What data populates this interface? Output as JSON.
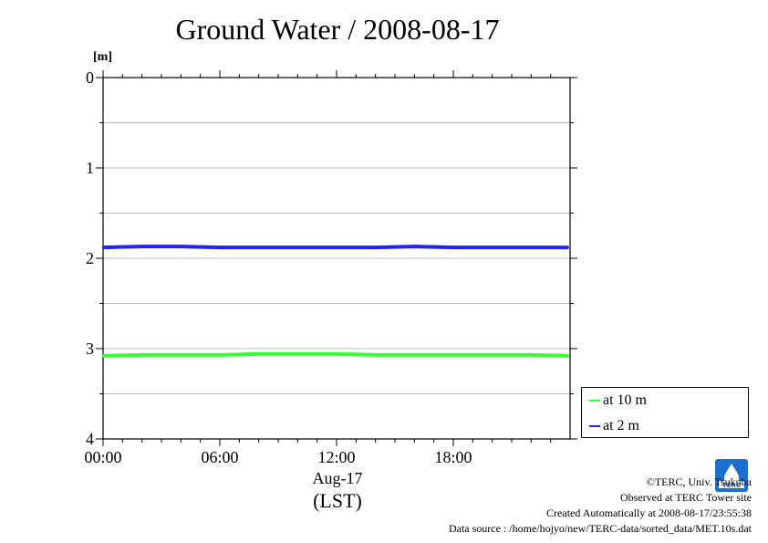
{
  "title": "Ground Water / 2008-08-17",
  "unit_label": "[m]",
  "date_label": "Aug-17",
  "tz_label": "(LST)",
  "legend": [
    {
      "label": "at 10 m",
      "color": "#33ff33"
    },
    {
      "label": "at 2 m",
      "color": "#2222ff"
    }
  ],
  "footer": {
    "copyright": "©TERC, Univ. Tsukuba",
    "observed": "Observed at TERC Tower site",
    "created": "Created Automatically at 2008-08-17/23:55:38",
    "source": "Data source : /home/hojyo/new/TERC-data/sorted_data/MET.10s.dat"
  },
  "logo_text": "TERC",
  "chart_data": {
    "type": "line",
    "title": "Ground Water / 2008-08-17",
    "ylabel": "[m]",
    "xlabel": "Aug-17 (LST)",
    "x_range_hours": [
      0,
      24
    ],
    "ylim": [
      0,
      4
    ],
    "y_inverted": true,
    "y_ticks": [
      "0",
      "1",
      "2",
      "3",
      "4"
    ],
    "x_tick_labels": [
      "00:00",
      "06:00",
      "12:00",
      "18:00"
    ],
    "x_ticks_hours": [
      0,
      6,
      12,
      18
    ],
    "grid": true,
    "legend_position": "bottom-right-outside",
    "series": [
      {
        "name": "at 10 m",
        "color": "#33ff33",
        "x": [
          0,
          2,
          4,
          6,
          8,
          10,
          12,
          14,
          16,
          18,
          20,
          22,
          23.9
        ],
        "values": [
          3.08,
          3.07,
          3.07,
          3.07,
          3.06,
          3.06,
          3.06,
          3.07,
          3.07,
          3.07,
          3.07,
          3.07,
          3.08
        ]
      },
      {
        "name": "at 2 m",
        "color": "#2222ff",
        "x": [
          0,
          2,
          4,
          6,
          8,
          10,
          12,
          14,
          16,
          18,
          20,
          22,
          23.9
        ],
        "values": [
          1.88,
          1.87,
          1.87,
          1.88,
          1.88,
          1.88,
          1.88,
          1.88,
          1.87,
          1.88,
          1.88,
          1.88,
          1.88
        ]
      }
    ]
  }
}
